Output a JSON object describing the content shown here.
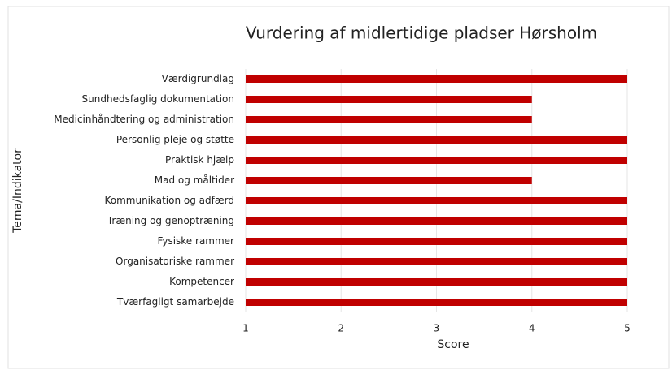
{
  "chart_data": {
    "type": "bar",
    "orientation": "horizontal",
    "title": "Vurdering af midlertidige pladser Hørsholm",
    "x_label": "Score",
    "y_label": "Tema/Indikator",
    "categories": [
      "Værdigrundlag",
      "Sundhedsfaglig dokumentation",
      "Medicinhåndtering og administration",
      "Personlig pleje og støtte",
      "Praktisk hjælp",
      "Mad og måltider",
      "Kommunikation og adfærd",
      "Træning og genoptræning",
      "Fysiske rammer",
      "Organisatoriske rammer",
      "Kompetencer",
      "Tværfagligt samarbejde"
    ],
    "values": [
      5,
      4,
      4,
      5,
      5,
      4,
      5,
      5,
      5,
      5,
      5,
      5
    ],
    "color": "#c00000",
    "xlim": [
      1,
      5
    ],
    "xticks": [
      1,
      2,
      3,
      4,
      5
    ],
    "grid": true
  }
}
